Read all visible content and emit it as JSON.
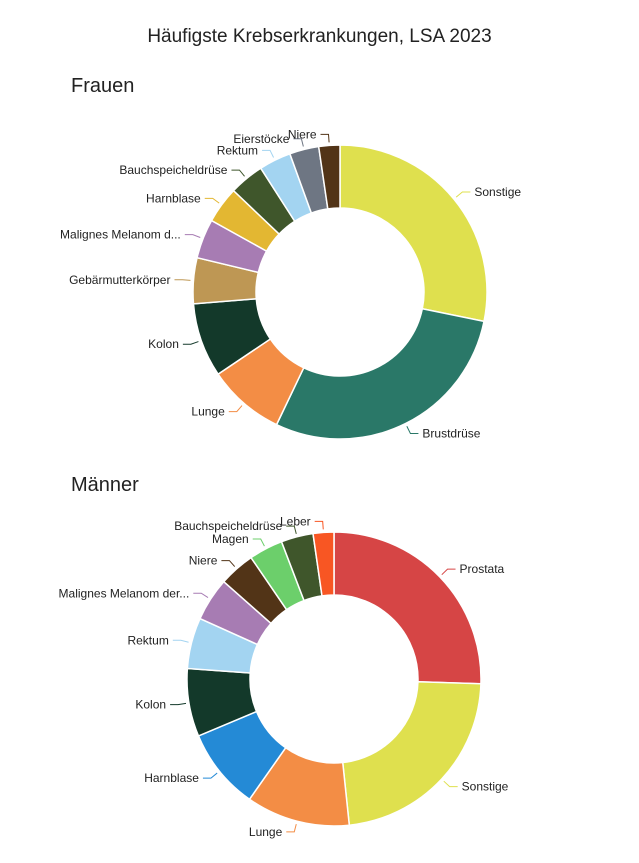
{
  "title": "Häufigste Krebserkrankungen, LSA 2023",
  "chart_data": [
    {
      "type": "pie",
      "donut": true,
      "title": "Frauen",
      "start": "top, clockwise",
      "slices": [
        {
          "label": "Sonstige",
          "value": 28.0,
          "color": "#dfe04e"
        },
        {
          "label": "Brustdrüse",
          "value": 28.7,
          "color": "#2a7868"
        },
        {
          "label": "Lunge",
          "value": 8.4,
          "color": "#f38d45"
        },
        {
          "label": "Kolon",
          "value": 8.1,
          "color": "#13392a"
        },
        {
          "label": "Gebärmutterkörper",
          "value": 5.0,
          "color": "#be9754"
        },
        {
          "label": "Malignes Melanom d...",
          "value": 4.3,
          "color": "#a77cb3"
        },
        {
          "label": "Harnblase",
          "value": 4.0,
          "color": "#e3b732"
        },
        {
          "label": "Bauchspeicheldrüse",
          "value": 3.8,
          "color": "#3f562b"
        },
        {
          "label": "Rektum",
          "value": 3.5,
          "color": "#a3d4f1"
        },
        {
          "label": "Eierstöcke",
          "value": 3.2,
          "color": "#6e7683"
        },
        {
          "label": "Niere",
          "value": 2.3,
          "color": "#523417"
        }
      ]
    },
    {
      "type": "pie",
      "donut": true,
      "title": "Männer",
      "start": "top, clockwise",
      "slices": [
        {
          "label": "Prostata",
          "value": 24.6,
          "color": "#d64545"
        },
        {
          "label": "Sonstige",
          "value": 22.0,
          "color": "#dfe04e"
        },
        {
          "label": "Lunge",
          "value": 11.0,
          "color": "#f38d45"
        },
        {
          "label": "Harnblase",
          "value": 8.6,
          "color": "#248ad6"
        },
        {
          "label": "Kolon",
          "value": 7.2,
          "color": "#13392a"
        },
        {
          "label": "Rektum",
          "value": 5.4,
          "color": "#a3d4f1"
        },
        {
          "label": "Malignes Melanom der...",
          "value": 4.6,
          "color": "#a77cb3"
        },
        {
          "label": "Niere",
          "value": 3.8,
          "color": "#523417"
        },
        {
          "label": "Magen",
          "value": 3.6,
          "color": "#6ccf6b"
        },
        {
          "label": "Bauchspeicheldrüse",
          "value": 3.4,
          "color": "#3f562b"
        },
        {
          "label": "Leber",
          "value": 2.2,
          "color": "#f85623"
        }
      ]
    }
  ]
}
